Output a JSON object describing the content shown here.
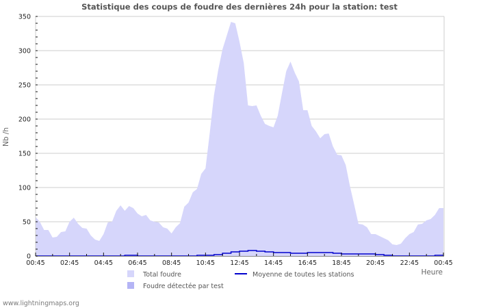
{
  "header": {
    "title": "Statistique des coups de foudre des dernières 24h pour la station: test"
  },
  "footer": {
    "site": "www.lightningmaps.org"
  },
  "colors": {
    "total_fill": "#d6d6fb",
    "detected_fill": "#b4b4f5",
    "average_line": "#0000cc",
    "grid": "#cccccc",
    "axis": "#cccccc"
  },
  "chart_data": {
    "type": "area",
    "title": "Statistique des coups de foudre des dernières 24h pour la station: test",
    "xlabel": "Heure",
    "ylabel": "Nb /h",
    "ylim": [
      0,
      350
    ],
    "yticks": [
      0,
      50,
      100,
      150,
      200,
      250,
      300,
      350
    ],
    "xticks": [
      "00:45",
      "02:45",
      "04:45",
      "06:45",
      "08:45",
      "10:45",
      "12:45",
      "14:45",
      "16:45",
      "18:45",
      "20:45",
      "22:45",
      "00:45"
    ],
    "grid": true,
    "legend_position": "bottom",
    "legend": [
      {
        "label": "Total foudre",
        "kind": "area",
        "color": "#d6d6fb"
      },
      {
        "label": "Foudre détectée par test",
        "kind": "area",
        "color": "#b4b4f5"
      },
      {
        "label": "Moyenne de toutes les stations",
        "kind": "line",
        "color": "#0000cc"
      }
    ],
    "series": [
      {
        "name": "Total foudre",
        "x_hours": [
          0,
          0.25,
          0.5,
          0.75,
          1.0,
          1.25,
          1.5,
          1.75,
          2.0,
          2.25,
          2.5,
          2.75,
          3.0,
          3.25,
          3.5,
          3.75,
          4.0,
          4.25,
          4.5,
          4.75,
          5.0,
          5.25,
          5.5,
          5.75,
          6.0,
          6.25,
          6.5,
          6.75,
          7.0,
          7.25,
          7.5,
          7.75,
          8.0,
          8.25,
          8.5,
          8.75,
          9.0,
          9.25,
          9.5,
          9.75,
          10.0,
          10.25,
          10.5,
          10.75,
          11.0,
          11.25,
          11.5,
          11.75,
          12.0,
          12.25,
          12.5,
          12.75,
          13.0,
          13.25,
          13.5,
          13.75,
          14.0,
          14.25,
          14.5,
          14.75,
          15.0,
          15.25,
          15.5,
          15.75,
          16.0,
          16.25,
          16.5,
          16.75,
          17.0,
          17.25,
          17.5,
          17.75,
          18.0,
          18.25,
          18.5,
          18.75,
          19.0,
          19.25,
          19.5,
          19.75,
          20.0,
          20.25,
          20.5,
          20.75,
          21.0,
          21.25,
          21.5,
          21.75,
          22.0,
          22.25,
          22.5,
          22.75,
          23.0,
          23.25,
          23.5,
          23.75,
          24.0
        ],
        "values": [
          57,
          50,
          38,
          38,
          27,
          28,
          35,
          36,
          50,
          56,
          47,
          41,
          40,
          30,
          24,
          22,
          32,
          49,
          50,
          66,
          74,
          66,
          73,
          70,
          62,
          58,
          60,
          52,
          50,
          49,
          42,
          40,
          33,
          42,
          48,
          72,
          78,
          93,
          98,
          120,
          128,
          180,
          235,
          272,
          302,
          322,
          342,
          340,
          313,
          282,
          220,
          219,
          220,
          205,
          193,
          190,
          188,
          205,
          238,
          270,
          284,
          268,
          255,
          213,
          213,
          190,
          182,
          172,
          178,
          179,
          160,
          148,
          147,
          133,
          102,
          75,
          47,
          46,
          42,
          32,
          32,
          29,
          26,
          23,
          17,
          16,
          18,
          26,
          32,
          35,
          46,
          47,
          52,
          54,
          60,
          70,
          70
        ]
      },
      {
        "name": "Foudre détectée par test",
        "x_hours": [
          0,
          24
        ],
        "values": [
          0,
          0
        ]
      },
      {
        "name": "Moyenne de toutes les stations",
        "x_hours": [
          0,
          5.0,
          5.25,
          5.5,
          5.75,
          6.0,
          9.0,
          9.5,
          10.0,
          10.5,
          11.0,
          11.5,
          12.0,
          12.5,
          13.0,
          13.5,
          14.0,
          14.5,
          15.0,
          15.5,
          16.0,
          16.5,
          17.0,
          17.5,
          18.0,
          18.5,
          19.0,
          19.5,
          20.0,
          20.5,
          21.0,
          23.5,
          24.0
        ],
        "values": [
          0,
          0,
          1,
          1,
          1,
          0,
          0,
          1,
          1,
          2,
          4,
          6,
          7,
          8,
          7,
          6,
          5,
          5,
          4,
          4,
          5,
          5,
          5,
          4,
          3,
          3,
          3,
          3,
          2,
          1,
          0,
          1,
          1
        ]
      }
    ]
  }
}
